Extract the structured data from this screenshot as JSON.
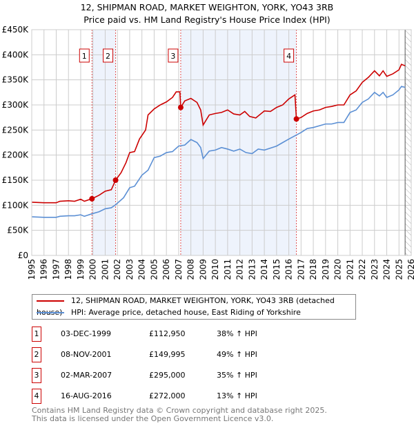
{
  "chart_data": {
    "type": "line",
    "title": "12, SHIPMAN ROAD, MARKET WEIGHTON, YORK, YO43 3RB",
    "subtitle": "Price paid vs. HM Land Registry's House Price Index (HPI)",
    "xlim": [
      1995,
      2026
    ],
    "ylim": [
      0,
      450000
    ],
    "yticks": [
      "£0",
      "£50K",
      "£100K",
      "£150K",
      "£200K",
      "£250K",
      "£300K",
      "£350K",
      "£400K",
      "£450K"
    ],
    "xticks": [
      "1995",
      "1996",
      "1997",
      "1998",
      "1999",
      "2000",
      "2001",
      "2002",
      "2003",
      "2004",
      "2005",
      "2006",
      "2007",
      "2008",
      "2009",
      "2010",
      "2011",
      "2012",
      "2013",
      "2014",
      "2015",
      "2016",
      "2017",
      "2018",
      "2019",
      "2020",
      "2021",
      "2022",
      "2023",
      "2024",
      "2025",
      "2026"
    ],
    "grid": true,
    "colors": {
      "property": "#cc0000",
      "hpi": "#5b8fd4",
      "shade": "#eef3fc"
    },
    "series": [
      {
        "name": "12, SHIPMAN ROAD, MARKET WEIGHTON, YORK, YO43 3RB (detached house)",
        "points": [
          [
            1995,
            106
          ],
          [
            1996,
            105
          ],
          [
            1997,
            105
          ],
          [
            1997.3,
            108
          ],
          [
            1998,
            109
          ],
          [
            1998.5,
            108
          ],
          [
            1999,
            112
          ],
          [
            1999.3,
            108
          ],
          [
            1999.92,
            113
          ],
          [
            2000.5,
            120
          ],
          [
            2001,
            128
          ],
          [
            2001.5,
            131
          ],
          [
            2001.85,
            150
          ],
          [
            2002.3,
            165
          ],
          [
            2002.7,
            185
          ],
          [
            2003,
            205
          ],
          [
            2003.4,
            207
          ],
          [
            2003.8,
            232
          ],
          [
            2004.3,
            250
          ],
          [
            2004.5,
            280
          ],
          [
            2005,
            292
          ],
          [
            2005.5,
            300
          ],
          [
            2006,
            306
          ],
          [
            2006.5,
            315
          ],
          [
            2006.8,
            326
          ],
          [
            2007.1,
            326
          ],
          [
            2007.17,
            295
          ],
          [
            2007.5,
            308
          ],
          [
            2008,
            313
          ],
          [
            2008.5,
            305
          ],
          [
            2008.8,
            290
          ],
          [
            2009,
            260
          ],
          [
            2009.5,
            280
          ],
          [
            2010,
            283
          ],
          [
            2010.5,
            285
          ],
          [
            2011,
            290
          ],
          [
            2011.5,
            282
          ],
          [
            2012,
            280
          ],
          [
            2012.4,
            287
          ],
          [
            2012.8,
            277
          ],
          [
            2013.3,
            274
          ],
          [
            2014,
            288
          ],
          [
            2014.5,
            287
          ],
          [
            2015,
            295
          ],
          [
            2015.5,
            300
          ],
          [
            2016,
            312
          ],
          [
            2016.5,
            320
          ],
          [
            2016.62,
            272
          ],
          [
            2017,
            275
          ],
          [
            2017.5,
            283
          ],
          [
            2018,
            288
          ],
          [
            2018.5,
            290
          ],
          [
            2019,
            295
          ],
          [
            2019.5,
            297
          ],
          [
            2020,
            300
          ],
          [
            2020.5,
            300
          ],
          [
            2021,
            320
          ],
          [
            2021.5,
            328
          ],
          [
            2022,
            345
          ],
          [
            2022.5,
            355
          ],
          [
            2023,
            368
          ],
          [
            2023.4,
            358
          ],
          [
            2023.7,
            368
          ],
          [
            2024,
            357
          ],
          [
            2024.5,
            362
          ],
          [
            2025,
            370
          ],
          [
            2025.2,
            381
          ],
          [
            2025.5,
            378
          ]
        ]
      },
      {
        "name": "HPI: Average price, detached house, East Riding of Yorkshire",
        "points": [
          [
            1995,
            77
          ],
          [
            1996,
            76
          ],
          [
            1997,
            76
          ],
          [
            1997.3,
            78
          ],
          [
            1998,
            79
          ],
          [
            1998.5,
            79
          ],
          [
            1999,
            81
          ],
          [
            1999.3,
            78
          ],
          [
            1999.92,
            83
          ],
          [
            2000.5,
            87
          ],
          [
            2001,
            93
          ],
          [
            2001.5,
            95
          ],
          [
            2001.85,
            101
          ],
          [
            2002.5,
            115
          ],
          [
            2003,
            135
          ],
          [
            2003.4,
            138
          ],
          [
            2004,
            160
          ],
          [
            2004.5,
            170
          ],
          [
            2005,
            195
          ],
          [
            2005.5,
            198
          ],
          [
            2006,
            205
          ],
          [
            2006.5,
            207
          ],
          [
            2007,
            218
          ],
          [
            2007.5,
            220
          ],
          [
            2008,
            231
          ],
          [
            2008.5,
            225
          ],
          [
            2008.8,
            215
          ],
          [
            2009,
            193
          ],
          [
            2009.5,
            208
          ],
          [
            2010,
            210
          ],
          [
            2010.5,
            215
          ],
          [
            2011,
            212
          ],
          [
            2011.5,
            208
          ],
          [
            2012,
            212
          ],
          [
            2012.5,
            205
          ],
          [
            2013,
            203
          ],
          [
            2013.5,
            212
          ],
          [
            2014,
            210
          ],
          [
            2015,
            218
          ],
          [
            2015.5,
            225
          ],
          [
            2016,
            232
          ],
          [
            2016.62,
            240
          ],
          [
            2017,
            245
          ],
          [
            2017.5,
            253
          ],
          [
            2018,
            255
          ],
          [
            2019,
            262
          ],
          [
            2019.5,
            262
          ],
          [
            2020,
            265
          ],
          [
            2020.5,
            265
          ],
          [
            2021,
            285
          ],
          [
            2021.5,
            290
          ],
          [
            2022,
            305
          ],
          [
            2022.5,
            312
          ],
          [
            2023,
            325
          ],
          [
            2023.4,
            318
          ],
          [
            2023.7,
            325
          ],
          [
            2024,
            315
          ],
          [
            2024.5,
            320
          ],
          [
            2025,
            330
          ],
          [
            2025.2,
            337
          ],
          [
            2025.5,
            335
          ]
        ]
      }
    ],
    "sales": [
      {
        "label": "1",
        "year": 1999.92,
        "value": 112950,
        "date": "03-DEC-1999",
        "price": "£112,950",
        "hpi": "38% ↑ HPI"
      },
      {
        "label": "2",
        "year": 2001.85,
        "value": 149995,
        "date": "08-NOV-2001",
        "price": "£149,995",
        "hpi": "49% ↑ HPI"
      },
      {
        "label": "3",
        "year": 2007.17,
        "value": 295000,
        "date": "02-MAR-2007",
        "price": "£295,000",
        "hpi": "35% ↑ HPI"
      },
      {
        "label": "4",
        "year": 2016.62,
        "value": 272000,
        "date": "16-AUG-2016",
        "price": "£272,000",
        "hpi": "13% ↑ HPI"
      }
    ],
    "shaded": [
      [
        1999.92,
        2001.85
      ],
      [
        2007.17,
        2016.62
      ]
    ],
    "forecast_from": 2025.5
  },
  "footer": [
    "Contains HM Land Registry data © Crown copyright and database right 2025.",
    "This data is licensed under the Open Government Licence v3.0."
  ]
}
